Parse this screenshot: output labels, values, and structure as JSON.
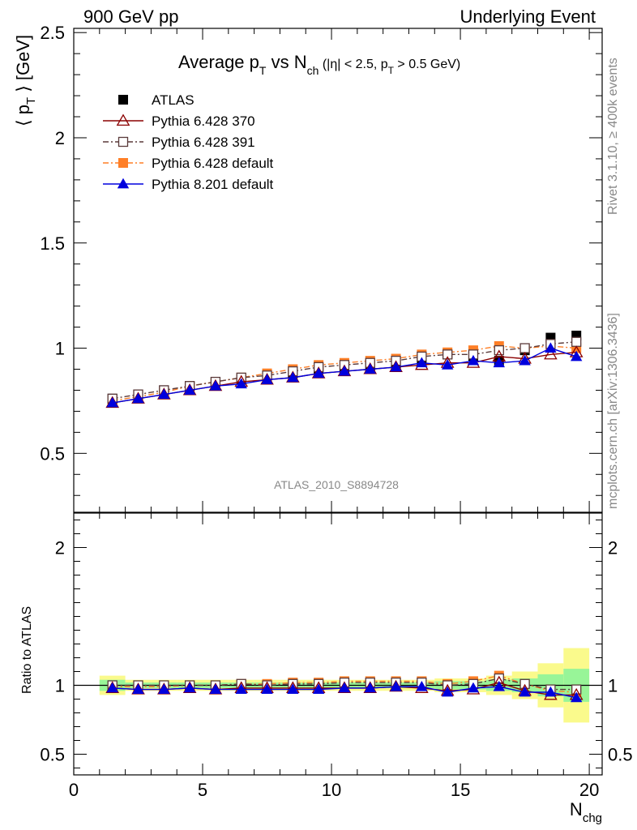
{
  "header": {
    "left": "900 GeV pp",
    "right": "Underlying Event"
  },
  "side_text": {
    "rivet": "Rivet 3.1.10, ≥ 400k events",
    "mcplots": "mcplots.cern.ch [arXiv:1306.3436]"
  },
  "watermark": "ATLAS_2010_S8894728",
  "title": {
    "main": "Average p",
    "main_sub": "T",
    "vs": " vs N",
    "vs_sub": "ch",
    "cuts_a": " (|η| < 2.5, p",
    "cuts_sub": "T",
    "cuts_b": " > 0.5 GeV)"
  },
  "ylabel_top": {
    "open": "⟨ p",
    "sub": "T",
    "close": " ⟩ [GeV]"
  },
  "ylabel_bottom": "Ratio to ATLAS",
  "xlabel": {
    "main": "N",
    "sub": "chg"
  },
  "chart_data": [
    {
      "type": "scatter",
      "panel": "main",
      "xlim": [
        0,
        20.5
      ],
      "ylim": [
        0.22,
        2.52
      ],
      "xticks": [
        0,
        5,
        10,
        15,
        20
      ],
      "yticks": [
        0.5,
        1,
        1.5,
        2,
        2.5
      ],
      "ytick_labels": [
        "0.5",
        "1",
        "1.5",
        "2",
        "2.5"
      ],
      "legend_position": "top-left",
      "x": [
        1.5,
        2.5,
        3.5,
        4.5,
        5.5,
        6.5,
        7.5,
        8.5,
        9.5,
        10.5,
        11.5,
        12.5,
        13.5,
        14.5,
        15.5,
        16.5,
        17.5,
        18.5,
        19.5
      ],
      "series": [
        {
          "name": "ATLAS",
          "color": "#000000",
          "marker": "filled-square",
          "line": "none",
          "values": [
            0.76,
            0.78,
            0.8,
            0.82,
            0.84,
            0.85,
            0.87,
            0.88,
            0.9,
            0.9,
            0.91,
            0.92,
            0.94,
            0.97,
            0.96,
            0.94,
            0.99,
            1.05,
            1.06
          ]
        },
        {
          "name": "Pythia 6.428 370",
          "color": "#8b0000",
          "marker": "open-triangle",
          "line": "solid",
          "values": [
            0.74,
            0.76,
            0.78,
            0.8,
            0.82,
            0.84,
            0.85,
            0.86,
            0.88,
            0.89,
            0.9,
            0.91,
            0.92,
            0.93,
            0.93,
            0.96,
            0.95,
            0.97,
            0.98
          ]
        },
        {
          "name": "Pythia 6.428 391",
          "color": "#5a3a3a",
          "marker": "open-square",
          "line": "dashdot",
          "values": [
            0.76,
            0.78,
            0.8,
            0.82,
            0.84,
            0.86,
            0.87,
            0.89,
            0.91,
            0.92,
            0.93,
            0.94,
            0.96,
            0.97,
            0.97,
            0.99,
            1.0,
            1.02,
            1.03
          ]
        },
        {
          "name": "Pythia 6.428 default",
          "color": "#ff7f27",
          "marker": "filled-square",
          "line": "dashdot",
          "values": [
            0.75,
            0.77,
            0.79,
            0.82,
            0.84,
            0.86,
            0.88,
            0.9,
            0.92,
            0.93,
            0.94,
            0.95,
            0.97,
            0.98,
            0.99,
            1.01,
            1.0,
            1.01,
            1.0
          ]
        },
        {
          "name": "Pythia 8.201 default",
          "color": "#0000dd",
          "marker": "filled-triangle",
          "line": "solid",
          "values": [
            0.74,
            0.76,
            0.78,
            0.8,
            0.82,
            0.83,
            0.85,
            0.86,
            0.88,
            0.89,
            0.9,
            0.91,
            0.93,
            0.92,
            0.94,
            0.93,
            0.94,
            1.0,
            0.96
          ]
        }
      ]
    },
    {
      "type": "scatter",
      "panel": "ratio",
      "ylabel": "Ratio to ATLAS",
      "xlim": [
        0,
        20.5
      ],
      "ylim": [
        0.35,
        2.25
      ],
      "xticks": [
        0,
        5,
        10,
        15,
        20
      ],
      "yticks": [
        0.5,
        1,
        2
      ],
      "ytick_labels": [
        "0.5",
        "1",
        "2"
      ],
      "reference_line": 1,
      "band_colors": {
        "inner": "#98f598",
        "outer": "#fafa8c"
      },
      "x": [
        1.5,
        2.5,
        3.5,
        4.5,
        5.5,
        6.5,
        7.5,
        8.5,
        9.5,
        10.5,
        11.5,
        12.5,
        13.5,
        14.5,
        15.5,
        16.5,
        17.5,
        18.5,
        19.5
      ],
      "band_inner": [
        0.04,
        0.02,
        0.02,
        0.02,
        0.02,
        0.02,
        0.02,
        0.02,
        0.02,
        0.02,
        0.02,
        0.02,
        0.02,
        0.03,
        0.03,
        0.04,
        0.05,
        0.08,
        0.12
      ],
      "band_outer": [
        0.07,
        0.04,
        0.04,
        0.04,
        0.04,
        0.04,
        0.04,
        0.04,
        0.04,
        0.04,
        0.04,
        0.04,
        0.04,
        0.05,
        0.05,
        0.07,
        0.1,
        0.16,
        0.27
      ],
      "series": [
        {
          "name": "Pythia 6.428 370",
          "color": "#8b0000",
          "marker": "open-triangle",
          "line": "solid",
          "values": [
            0.98,
            0.97,
            0.97,
            0.98,
            0.97,
            0.98,
            0.98,
            0.98,
            0.98,
            0.98,
            0.98,
            0.99,
            0.98,
            0.96,
            0.97,
            1.02,
            0.96,
            0.93,
            0.93
          ]
        },
        {
          "name": "Pythia 6.428 391",
          "color": "#5a3a3a",
          "marker": "open-square",
          "line": "dashdot",
          "values": [
            1.0,
            1.0,
            1.0,
            1.0,
            1.0,
            1.01,
            1.0,
            1.01,
            1.01,
            1.02,
            1.02,
            1.02,
            1.02,
            1.0,
            1.01,
            1.05,
            1.01,
            0.97,
            0.97
          ]
        },
        {
          "name": "Pythia 6.428 default",
          "color": "#ff7f27",
          "marker": "filled-square",
          "line": "dashdot",
          "values": [
            0.99,
            0.99,
            0.99,
            1.0,
            1.0,
            1.01,
            1.01,
            1.02,
            1.02,
            1.03,
            1.03,
            1.03,
            1.03,
            1.01,
            1.03,
            1.07,
            1.01,
            0.96,
            0.95
          ]
        },
        {
          "name": "Pythia 8.201 default",
          "color": "#0000dd",
          "marker": "filled-triangle",
          "line": "solid",
          "values": [
            0.98,
            0.97,
            0.97,
            0.98,
            0.97,
            0.97,
            0.97,
            0.97,
            0.97,
            0.98,
            0.98,
            0.99,
            0.99,
            0.95,
            0.98,
            0.99,
            0.95,
            0.95,
            0.91
          ]
        }
      ]
    }
  ]
}
